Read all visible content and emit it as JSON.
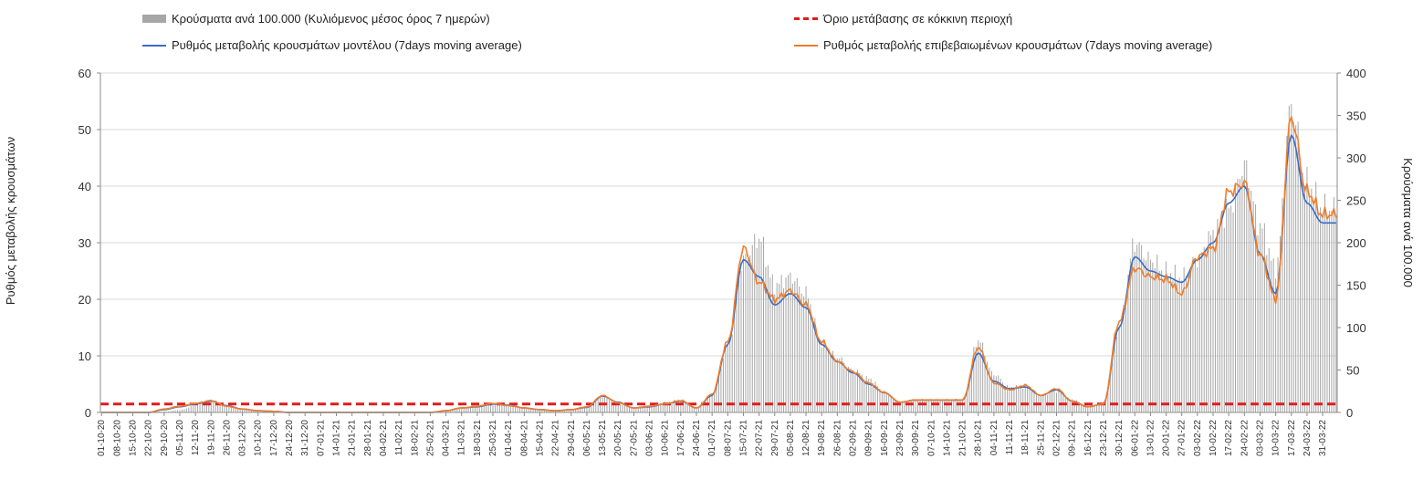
{
  "chart_data": {
    "type": "bar+line",
    "legend": {
      "bars": "Κρούσματα ανά 100.000 (Κυλιόμενος μέσος όρος 7 ημερών)",
      "threshold": "Όριο μετάβασης σε κόκκινη περιοχή",
      "model_line": "Ρυθμός μεταβολής κρουσμάτων μοντέλου (7days moving average)",
      "confirmed_line": "Ρυθμός μεταβολής επιβεβαιωμένων κρουσμάτων (7days moving average)"
    },
    "ylabel_left": "Ρυθμός μεταβολής κρουσμάτων",
    "ylabel_right": "Κρούσματα ανά 100.000",
    "ylim_left": [
      0,
      60
    ],
    "ylim_right": [
      0,
      400
    ],
    "yticks_left": [
      "0",
      "10",
      "20",
      "30",
      "40",
      "50",
      "60"
    ],
    "yticks_right": [
      "0",
      "50",
      "100",
      "150",
      "200",
      "250",
      "300",
      "350",
      "400"
    ],
    "threshold_value": 1.5,
    "x_start": "01-10-20",
    "x_end": "31-03-22",
    "x_ticks": [
      "01-10-20",
      "08-10-20",
      "15-10-20",
      "22-10-20",
      "29-10-20",
      "05-11-20",
      "12-11-20",
      "19-11-20",
      "26-11-20",
      "03-12-20",
      "10-12-20",
      "17-12-20",
      "24-12-20",
      "31-12-20",
      "07-01-21",
      "14-01-21",
      "21-01-21",
      "28-01-21",
      "04-02-21",
      "11-02-21",
      "18-02-21",
      "25-02-21",
      "04-03-21",
      "11-03-21",
      "18-03-21",
      "25-03-21",
      "01-04-21",
      "08-04-21",
      "15-04-21",
      "22-04-21",
      "29-04-21",
      "06-05-21",
      "13-05-21",
      "20-05-21",
      "27-05-21",
      "03-06-21",
      "10-06-21",
      "17-06-21",
      "24-06-21",
      "01-07-21",
      "08-07-21",
      "15-07-21",
      "22-07-21",
      "29-07-21",
      "05-08-21",
      "12-08-21",
      "19-08-21",
      "26-08-21",
      "02-09-21",
      "09-09-21",
      "16-09-21",
      "23-09-21",
      "30-09-21",
      "07-10-21",
      "14-10-21",
      "21-10-21",
      "28-10-21",
      "04-11-21",
      "11-11-21",
      "18-11-21",
      "25-11-21",
      "02-12-21",
      "09-12-21",
      "16-12-21",
      "23-12-21",
      "30-12-21",
      "06-01-22",
      "13-01-22",
      "20-01-22",
      "27-01-22",
      "03-02-22",
      "10-02-22",
      "17-02-22",
      "24-02-22",
      "03-03-22",
      "10-03-22",
      "17-03-22",
      "24-03-22",
      "31-03-22"
    ],
    "weekly_bars_per_100k": [
      0,
      0,
      0,
      0,
      1,
      3,
      8,
      14,
      9,
      4,
      2,
      1,
      0,
      0,
      0,
      0,
      0,
      0,
      0,
      0,
      0,
      0,
      2,
      5,
      7,
      10,
      8,
      5,
      3,
      2,
      3,
      6,
      20,
      12,
      5,
      7,
      12,
      15,
      5,
      20,
      80,
      180,
      205,
      150,
      160,
      140,
      80,
      65,
      50,
      40,
      25,
      12,
      15,
      15,
      15,
      15,
      85,
      45,
      30,
      30,
      20,
      25,
      15,
      8,
      10,
      100,
      200,
      180,
      165,
      160,
      180,
      210,
      240,
      290,
      220,
      170,
      360,
      270,
      240
    ],
    "weekly_model_rate": [
      0,
      0,
      0,
      0,
      0.5,
      1.0,
      1.5,
      2.0,
      1.2,
      0.6,
      0.3,
      0.2,
      0,
      0,
      0,
      0,
      0,
      0,
      0,
      0,
      0,
      0,
      0.3,
      0.8,
      1.0,
      1.5,
      1.3,
      0.8,
      0.5,
      0.3,
      0.5,
      0.9,
      2.9,
      1.8,
      0.8,
      1.0,
      1.5,
      2.0,
      0.8,
      3.0,
      12.0,
      27.0,
      24.0,
      19.0,
      21.0,
      18.5,
      12.0,
      9.0,
      7.0,
      5.0,
      3.5,
      1.8,
      2.2,
      2.2,
      2.2,
      2.2,
      10.5,
      5.5,
      4.2,
      4.5,
      3.0,
      4.0,
      2.0,
      1.0,
      1.5,
      15.0,
      27.5,
      25.0,
      24.0,
      23.0,
      27.0,
      30.0,
      37.0,
      40.0,
      28.0,
      21.0,
      49.0,
      37.0,
      33.5
    ],
    "weekly_confirmed_rate": [
      0,
      0,
      0,
      0,
      0.6,
      1.1,
      1.6,
      2.1,
      1.1,
      0.6,
      0.3,
      0.2,
      0,
      0,
      0,
      0,
      0,
      0,
      0,
      0,
      0,
      0,
      0.3,
      0.8,
      1.1,
      1.6,
      1.2,
      0.8,
      0.5,
      0.3,
      0.5,
      1.0,
      3.0,
      1.7,
      0.8,
      1.1,
      1.5,
      2.1,
      0.8,
      3.2,
      12.5,
      29.0,
      23.0,
      20.0,
      21.5,
      19.0,
      12.5,
      9.0,
      7.2,
      5.2,
      3.5,
      1.8,
      2.2,
      2.2,
      2.2,
      2.2,
      11.5,
      5.2,
      4.0,
      4.8,
      3.0,
      4.2,
      2.0,
      1.0,
      1.5,
      16.0,
      25.5,
      24.0,
      23.5,
      21.0,
      27.5,
      29.0,
      39.0,
      40.5,
      28.0,
      20.0,
      52.0,
      39.0,
      35.0
    ]
  }
}
